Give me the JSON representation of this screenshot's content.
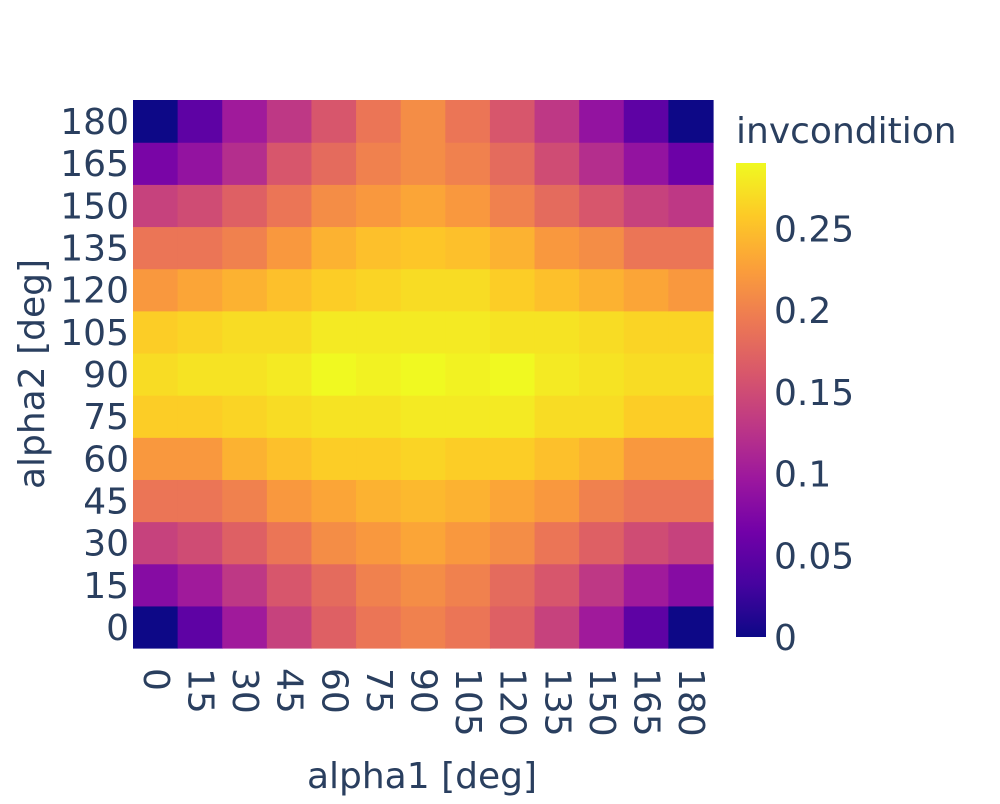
{
  "chart_data": {
    "type": "heatmap",
    "title": "",
    "xlabel": "alpha1 [deg]",
    "ylabel": "alpha2 [deg]",
    "x": [
      0,
      15,
      30,
      45,
      60,
      75,
      90,
      105,
      120,
      135,
      150,
      165,
      180
    ],
    "y": [
      0,
      15,
      30,
      45,
      60,
      75,
      90,
      105,
      120,
      135,
      150,
      165,
      180
    ],
    "z": [
      [
        0.0,
        0.05,
        0.1,
        0.14,
        0.17,
        0.19,
        0.2,
        0.19,
        0.17,
        0.14,
        0.1,
        0.05,
        0.0
      ],
      [
        0.08,
        0.1,
        0.13,
        0.16,
        0.18,
        0.2,
        0.21,
        0.2,
        0.18,
        0.16,
        0.13,
        0.1,
        0.08
      ],
      [
        0.14,
        0.15,
        0.17,
        0.19,
        0.21,
        0.22,
        0.23,
        0.22,
        0.21,
        0.19,
        0.17,
        0.15,
        0.14
      ],
      [
        0.19,
        0.19,
        0.2,
        0.22,
        0.23,
        0.24,
        0.245,
        0.24,
        0.23,
        0.22,
        0.2,
        0.19,
        0.19
      ],
      [
        0.22,
        0.22,
        0.24,
        0.25,
        0.26,
        0.26,
        0.265,
        0.26,
        0.26,
        0.25,
        0.24,
        0.22,
        0.22
      ],
      [
        0.26,
        0.26,
        0.265,
        0.27,
        0.275,
        0.275,
        0.28,
        0.28,
        0.28,
        0.27,
        0.27,
        0.26,
        0.26
      ],
      [
        0.27,
        0.275,
        0.275,
        0.28,
        0.29,
        0.285,
        0.29,
        0.285,
        0.29,
        0.28,
        0.275,
        0.27,
        0.27
      ],
      [
        0.26,
        0.265,
        0.27,
        0.27,
        0.28,
        0.28,
        0.28,
        0.28,
        0.275,
        0.275,
        0.27,
        0.265,
        0.265
      ],
      [
        0.22,
        0.23,
        0.24,
        0.25,
        0.26,
        0.265,
        0.27,
        0.27,
        0.26,
        0.25,
        0.24,
        0.23,
        0.22
      ],
      [
        0.19,
        0.19,
        0.2,
        0.22,
        0.24,
        0.25,
        0.255,
        0.25,
        0.24,
        0.22,
        0.21,
        0.19,
        0.19
      ],
      [
        0.14,
        0.15,
        0.17,
        0.19,
        0.21,
        0.22,
        0.23,
        0.22,
        0.2,
        0.18,
        0.16,
        0.14,
        0.13
      ],
      [
        0.07,
        0.09,
        0.12,
        0.16,
        0.18,
        0.2,
        0.21,
        0.2,
        0.18,
        0.15,
        0.12,
        0.09,
        0.06
      ],
      [
        0.0,
        0.05,
        0.1,
        0.13,
        0.16,
        0.19,
        0.21,
        0.19,
        0.16,
        0.13,
        0.09,
        0.05,
        0.0
      ]
    ],
    "zmin": 0,
    "zmax": 0.29,
    "colorscale": "Plasma",
    "colorbar": {
      "title": "invcondition",
      "tickvals": [
        0,
        0.05,
        0.1,
        0.15,
        0.2,
        0.25
      ],
      "ticktext": [
        "0",
        "0.05",
        "0.1",
        "0.15",
        "0.2",
        "0.25"
      ]
    },
    "grid": false,
    "legend": "none"
  },
  "colors": {
    "axis_text": "#2a3f5f",
    "background": "#ffffff"
  }
}
